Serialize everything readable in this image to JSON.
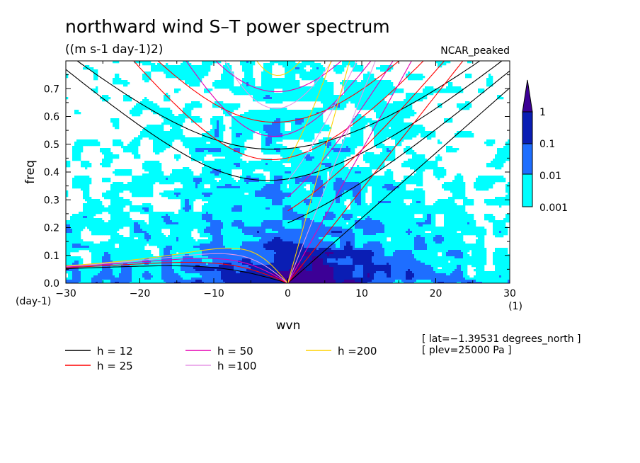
{
  "chart_data": {
    "type": "contour",
    "title": "northward wind S–T power spectrum",
    "subtitle": "((m s-1 day-1)2)",
    "tag": "NCAR_peaked",
    "xlabel": "wvn",
    "ylabel": "freq",
    "x_unit": "(1)",
    "y_unit": "(day-1)",
    "xlim": [
      -30,
      30
    ],
    "ylim": [
      0,
      0.8
    ],
    "xticks": [
      -30,
      -20,
      -10,
      0,
      10,
      20,
      30
    ],
    "xtick_labels": [
      "−30",
      "−20",
      "−10",
      "0",
      "10",
      "20",
      "30"
    ],
    "yticks": [
      0,
      0.1,
      0.2,
      0.3,
      0.4,
      0.5,
      0.6,
      0.7
    ],
    "ytick_labels": [
      "0.0",
      "0.1",
      "0.2",
      "0.3",
      "0.4",
      "0.5",
      "0.6",
      "0.7"
    ],
    "colorbar": {
      "levels": [
        "0.001",
        "0.01",
        "0.1",
        "1"
      ],
      "colors": [
        "#00ffff",
        "#1e6eff",
        "#0a1eb4",
        "#3c0096"
      ]
    },
    "dispersion_curves": [
      {
        "label": "h = 12",
        "h": 12,
        "color": "#000000"
      },
      {
        "label": "h = 25",
        "h": 25,
        "color": "#ff0000"
      },
      {
        "label": "h = 50",
        "h": 50,
        "color": "#e600b4"
      },
      {
        "label": "h =100",
        "h": 100,
        "color": "#e696e6"
      },
      {
        "label": "h =200",
        "h": 200,
        "color": "#ffd200"
      }
    ],
    "notes": [
      "[ lat=−1.39531 degrees_north ]",
      "[ plev=25000 Pa ]"
    ]
  }
}
